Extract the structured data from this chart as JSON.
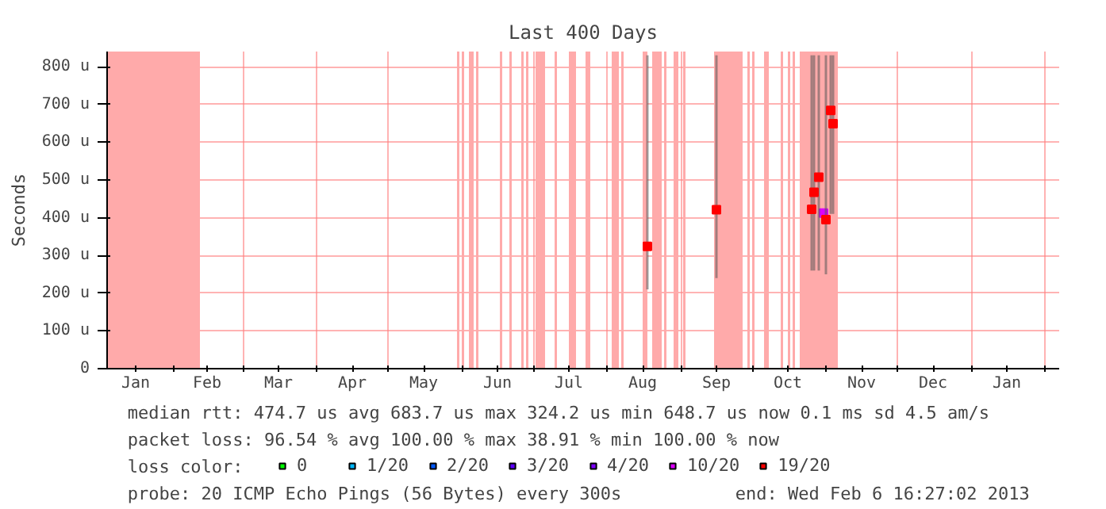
{
  "chart_data": {
    "type": "scatter",
    "title": "Last 400 Days",
    "ylabel": "Seconds",
    "legend_title": "loss color:",
    "annotations": [
      "median rtt:  474.7 us avg  683.7 us max  324.2 us min  648.7 us now  0.1 ms sd  4.5   am/s",
      "packet loss: 96.54 % avg  100.00 % max  38.91 % min  100.00 % now",
      "probe:       20 ICMP Echo Pings (56 Bytes) every 300s",
      "end: Wed Feb  6 16:27:02 2013"
    ],
    "xlim": [
      "2012-01-04",
      "2013-02-07"
    ],
    "xticks": [
      {
        "value": "2012-01-16",
        "label": "Jan"
      },
      {
        "value": "2012-02-01",
        "label": null
      },
      {
        "value": "2012-02-15",
        "label": "Feb"
      },
      {
        "value": "2012-03-01",
        "label": null
      },
      {
        "value": "2012-03-16",
        "label": "Mar"
      },
      {
        "value": "2012-04-01",
        "label": null
      },
      {
        "value": "2012-04-16",
        "label": "Apr"
      },
      {
        "value": "2012-05-01",
        "label": null
      },
      {
        "value": "2012-05-16",
        "label": "May"
      },
      {
        "value": "2012-06-01",
        "label": null
      },
      {
        "value": "2012-06-16",
        "label": "Jun"
      },
      {
        "value": "2012-07-01",
        "label": null
      },
      {
        "value": "2012-07-16",
        "label": "Jul"
      },
      {
        "value": "2012-08-01",
        "label": null
      },
      {
        "value": "2012-08-16",
        "label": "Aug"
      },
      {
        "value": "2012-09-01",
        "label": null
      },
      {
        "value": "2012-09-16",
        "label": "Sep"
      },
      {
        "value": "2012-10-01",
        "label": null
      },
      {
        "value": "2012-10-16",
        "label": "Oct"
      },
      {
        "value": "2012-11-01",
        "label": null
      },
      {
        "value": "2012-11-16",
        "label": "Nov"
      },
      {
        "value": "2012-12-01",
        "label": null
      },
      {
        "value": "2012-12-16",
        "label": "Dec"
      },
      {
        "value": "2013-01-01",
        "label": null
      },
      {
        "value": "2013-01-16",
        "label": "Jan"
      },
      {
        "value": "2013-02-01",
        "label": null
      }
    ],
    "ylim": [
      0,
      840
    ],
    "yticks": [
      0,
      {
        "value": 100,
        "label": "100 u"
      },
      {
        "value": 200,
        "label": "200 u"
      },
      {
        "value": 300,
        "label": "300 u"
      },
      {
        "value": 400,
        "label": "400 u"
      },
      {
        "value": 500,
        "label": "500 u"
      },
      {
        "value": 600,
        "label": "600 u"
      },
      {
        "value": 700,
        "label": "700 u"
      },
      {
        "value": 800,
        "label": "800 u"
      }
    ],
    "grid": true,
    "legend": "bottom",
    "marker": "square",
    "series": [
      {
        "name": "0",
        "color": "#00ff00"
      },
      {
        "name": "1/20",
        "color": "#00b8ff"
      },
      {
        "name": "2/20",
        "color": "#0059ff"
      },
      {
        "name": "3/20",
        "color": "#5e00ff"
      },
      {
        "name": "4/20",
        "color": "#7e00ff"
      },
      {
        "name": "10/20",
        "color": "#dd00ff",
        "x": [
          "2012-10-31"
        ],
        "values": [
          412
        ]
      },
      {
        "name": "19/20",
        "color": "#ff0000",
        "x": [
          "2012-08-18",
          "2012-09-16",
          "2012-10-26",
          "2012-10-27",
          "2012-10-29",
          "2012-11-01",
          "2012-11-03",
          "2012-11-04"
        ],
        "values": [
          324,
          421,
          422,
          467,
          507,
          395,
          684,
          649
        ],
        "lower": [
          210,
          240,
          260,
          260,
          260,
          250,
          410,
          410
        ],
        "upper": [
          830,
          830,
          830,
          830,
          830,
          830,
          830,
          830
        ]
      }
    ],
    "bands": [
      {
        "axis": "x",
        "from": "2012-01-04",
        "to": "2012-02-12",
        "color": "#ffaaaa"
      },
      {
        "axis": "x",
        "from": "2012-05-30",
        "to": "2012-05-31",
        "color": "#ffaaaa"
      },
      {
        "axis": "x",
        "from": "2012-06-01",
        "to": "2012-06-02",
        "color": "#ffaaaa"
      },
      {
        "axis": "x",
        "from": "2012-06-04",
        "to": "2012-06-06",
        "color": "#ffaaaa"
      },
      {
        "axis": "x",
        "from": "2012-06-07",
        "to": "2012-06-08",
        "color": "#ffaaaa"
      },
      {
        "axis": "x",
        "from": "2012-06-17",
        "to": "2012-06-18",
        "color": "#ffaaaa"
      },
      {
        "axis": "x",
        "from": "2012-06-21",
        "to": "2012-06-22",
        "color": "#ffaaaa"
      },
      {
        "axis": "x",
        "from": "2012-06-26",
        "to": "2012-06-27",
        "color": "#ffaaaa"
      },
      {
        "axis": "x",
        "from": "2012-06-28",
        "to": "2012-06-29",
        "color": "#ffaaaa"
      },
      {
        "axis": "x",
        "from": "2012-07-02",
        "to": "2012-07-06",
        "color": "#ffaaaa"
      },
      {
        "axis": "x",
        "from": "2012-07-10",
        "to": "2012-07-11",
        "color": "#ffaaaa"
      },
      {
        "axis": "x",
        "from": "2012-07-16",
        "to": "2012-07-19",
        "color": "#ffaaaa"
      },
      {
        "axis": "x",
        "from": "2012-07-23",
        "to": "2012-07-25",
        "color": "#ffaaaa"
      },
      {
        "axis": "x",
        "from": "2012-08-03",
        "to": "2012-08-06",
        "color": "#ffaaaa"
      },
      {
        "axis": "x",
        "from": "2012-08-07",
        "to": "2012-08-08",
        "color": "#ffaaaa"
      },
      {
        "axis": "x",
        "from": "2012-08-16",
        "to": "2012-08-18",
        "color": "#ffaaaa"
      },
      {
        "axis": "x",
        "from": "2012-08-20",
        "to": "2012-08-24",
        "color": "#ffaaaa"
      },
      {
        "axis": "x",
        "from": "2012-08-25",
        "to": "2012-08-26",
        "color": "#ffaaaa"
      },
      {
        "axis": "x",
        "from": "2012-08-29",
        "to": "2012-08-31",
        "color": "#ffaaaa"
      },
      {
        "axis": "x",
        "from": "2012-09-02",
        "to": "2012-09-03",
        "color": "#ffaaaa"
      },
      {
        "axis": "x",
        "from": "2012-09-15",
        "to": "2012-09-27",
        "color": "#ffaaaa"
      },
      {
        "axis": "x",
        "from": "2012-09-29",
        "to": "2012-09-30",
        "color": "#ffaaaa"
      },
      {
        "axis": "x",
        "from": "2012-10-01",
        "to": "2012-10-02",
        "color": "#ffaaaa"
      },
      {
        "axis": "x",
        "from": "2012-10-06",
        "to": "2012-10-08",
        "color": "#ffaaaa"
      },
      {
        "axis": "x",
        "from": "2012-10-13",
        "to": "2012-10-14",
        "color": "#ffaaaa"
      },
      {
        "axis": "x",
        "from": "2012-10-16",
        "to": "2012-10-17",
        "color": "#ffaaaa"
      },
      {
        "axis": "x",
        "from": "2012-10-18",
        "to": "2012-10-19",
        "color": "#ffaaaa"
      },
      {
        "axis": "x",
        "from": "2012-10-21",
        "to": "2012-11-06",
        "color": "#ffaaaa"
      }
    ]
  }
}
